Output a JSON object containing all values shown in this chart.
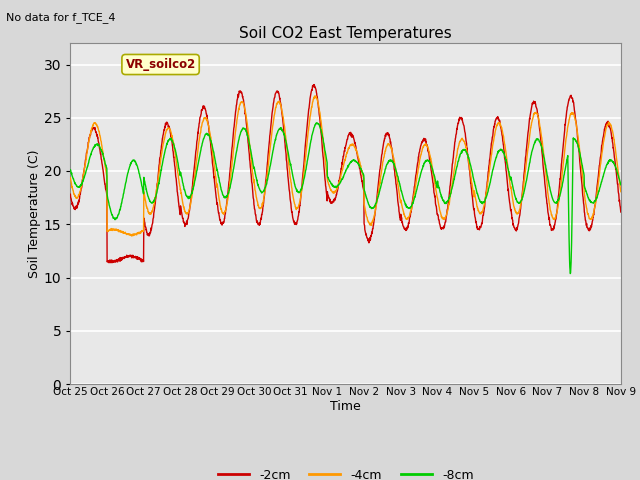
{
  "title": "Soil CO2 East Temperatures",
  "xlabel": "Time",
  "ylabel": "Soil Temperature (C)",
  "no_data_label": "No data for f_TCE_4",
  "box_label": "VR_soilco2",
  "ylim": [
    0,
    32
  ],
  "yticks": [
    0,
    5,
    10,
    15,
    20,
    25,
    30
  ],
  "x_tick_labels": [
    "Oct 25",
    "Oct 26",
    "Oct 27",
    "Oct 28",
    "Oct 29",
    "Oct 30",
    "Oct 31",
    "Nov 1",
    "Nov 2",
    "Nov 3",
    "Nov 4",
    "Nov 5",
    "Nov 6",
    "Nov 7",
    "Nov 8",
    "Nov 9"
  ],
  "fig_bg_color": "#d8d8d8",
  "plot_bg_color": "#e8e8e8",
  "grid_color": "#c8c8c8",
  "line_colors": {
    "2cm": "#cc0000",
    "4cm": "#ff9900",
    "8cm": "#00cc00"
  },
  "legend_labels": [
    "-2cm",
    "-4cm",
    "-8cm"
  ],
  "legend_colors": [
    "#cc0000",
    "#ff9900",
    "#00cc00"
  ],
  "num_days": 15,
  "day_maxes_2cm": [
    24.0,
    12.0,
    24.5,
    26.0,
    27.5,
    27.5,
    28.0,
    23.5,
    23.5,
    23.0,
    25.0,
    25.0,
    26.5,
    27.0,
    24.5,
    20.0
  ],
  "day_mins_2cm": [
    16.5,
    11.5,
    14.0,
    15.0,
    15.0,
    15.0,
    15.0,
    17.0,
    13.5,
    14.5,
    14.5,
    14.5,
    14.5,
    14.5,
    14.5,
    13.5
  ],
  "day_maxes_4cm": [
    24.5,
    14.0,
    24.0,
    25.0,
    26.5,
    26.5,
    27.0,
    22.5,
    22.5,
    22.5,
    23.0,
    24.5,
    25.5,
    25.5,
    24.5,
    19.5
  ],
  "day_mins_4cm": [
    17.5,
    14.5,
    16.0,
    16.0,
    16.0,
    16.5,
    16.5,
    18.0,
    15.0,
    15.5,
    15.5,
    16.0,
    16.0,
    15.5,
    15.5,
    15.0
  ],
  "day_maxes_8cm": [
    22.5,
    21.0,
    23.0,
    23.5,
    24.0,
    24.0,
    24.5,
    21.0,
    21.0,
    21.0,
    22.0,
    22.0,
    23.0,
    23.0,
    21.0,
    21.0
  ],
  "day_mins_8cm": [
    18.5,
    15.5,
    17.0,
    17.5,
    17.5,
    18.0,
    18.0,
    18.5,
    16.5,
    16.5,
    17.0,
    17.0,
    17.0,
    17.0,
    17.0,
    16.5
  ],
  "phase_2cm": 0.38,
  "phase_4cm": 0.42,
  "phase_8cm": 0.47,
  "dip_day": 13.55,
  "dip_duration": 0.15,
  "dip_magnitude": 12.0
}
